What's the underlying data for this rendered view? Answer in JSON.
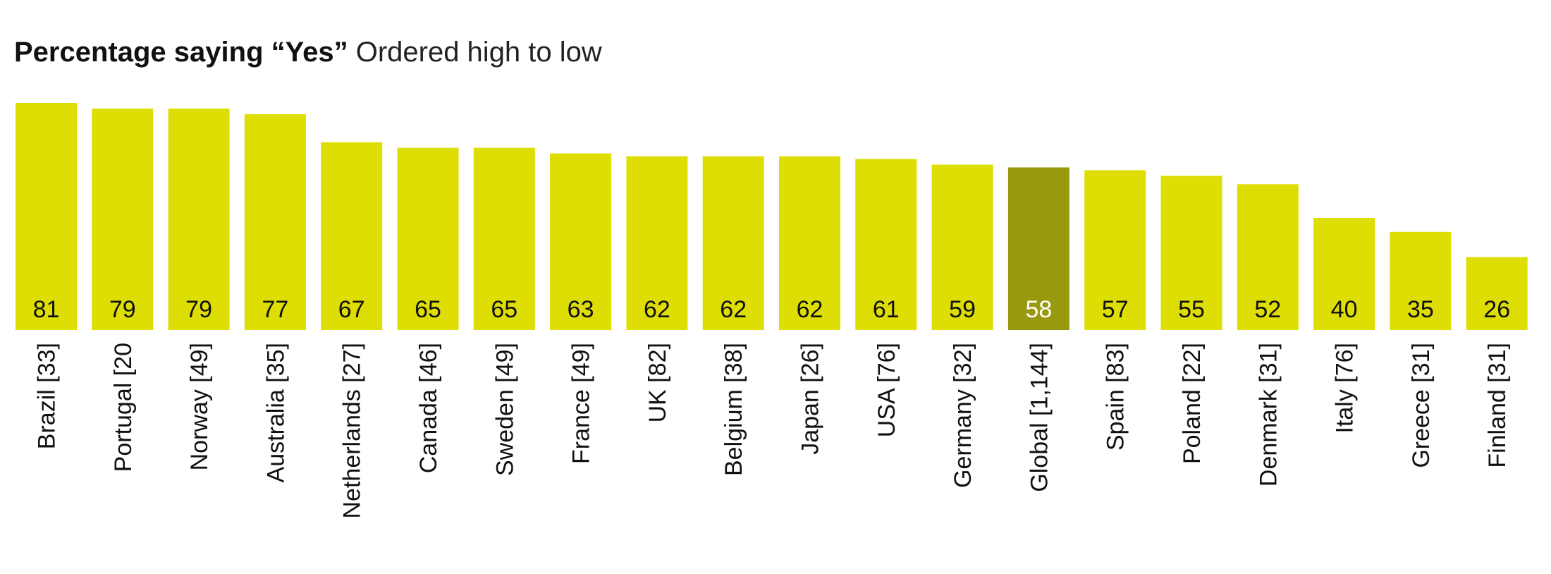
{
  "title": {
    "bold": "Percentage saying “Yes”",
    "light": "Ordered high to low"
  },
  "colors": {
    "bar": "#dede05",
    "highlight": "#999910",
    "label": "#111111",
    "label_highlight": "#ffffff"
  },
  "chart_data": {
    "type": "bar",
    "title": "Percentage saying “Yes” Ordered high to low",
    "xlabel": "",
    "ylabel": "",
    "ylim": [
      0,
      81
    ],
    "grid": false,
    "categories": [
      "Brazil [33]",
      "Portugal [20",
      "Norway [49]",
      "Australia [35]",
      "Netherlands [27]",
      "Canada [46]",
      "Sweden [49]",
      "France [49]",
      "UK [82]",
      "Belgium [38]",
      "Japan [26]",
      "USA [76]",
      "Germany [32]",
      "Global [1,144]",
      "Spain [83]",
      "Poland [22]",
      "Denmark [31]",
      "Italy [76]",
      "Greece [31]",
      "Finland [31]"
    ],
    "values": [
      81,
      79,
      79,
      77,
      67,
      65,
      65,
      63,
      62,
      62,
      62,
      61,
      59,
      58,
      57,
      55,
      52,
      40,
      35,
      26
    ],
    "value_labels": [
      "81",
      "79",
      "79",
      "77",
      "67",
      "65",
      "65",
      "63",
      "62",
      "62",
      "62",
      "61",
      "59",
      "58",
      "57",
      "55",
      "52",
      "40",
      "35",
      "26"
    ],
    "highlight_category": "Global [1,144]"
  }
}
